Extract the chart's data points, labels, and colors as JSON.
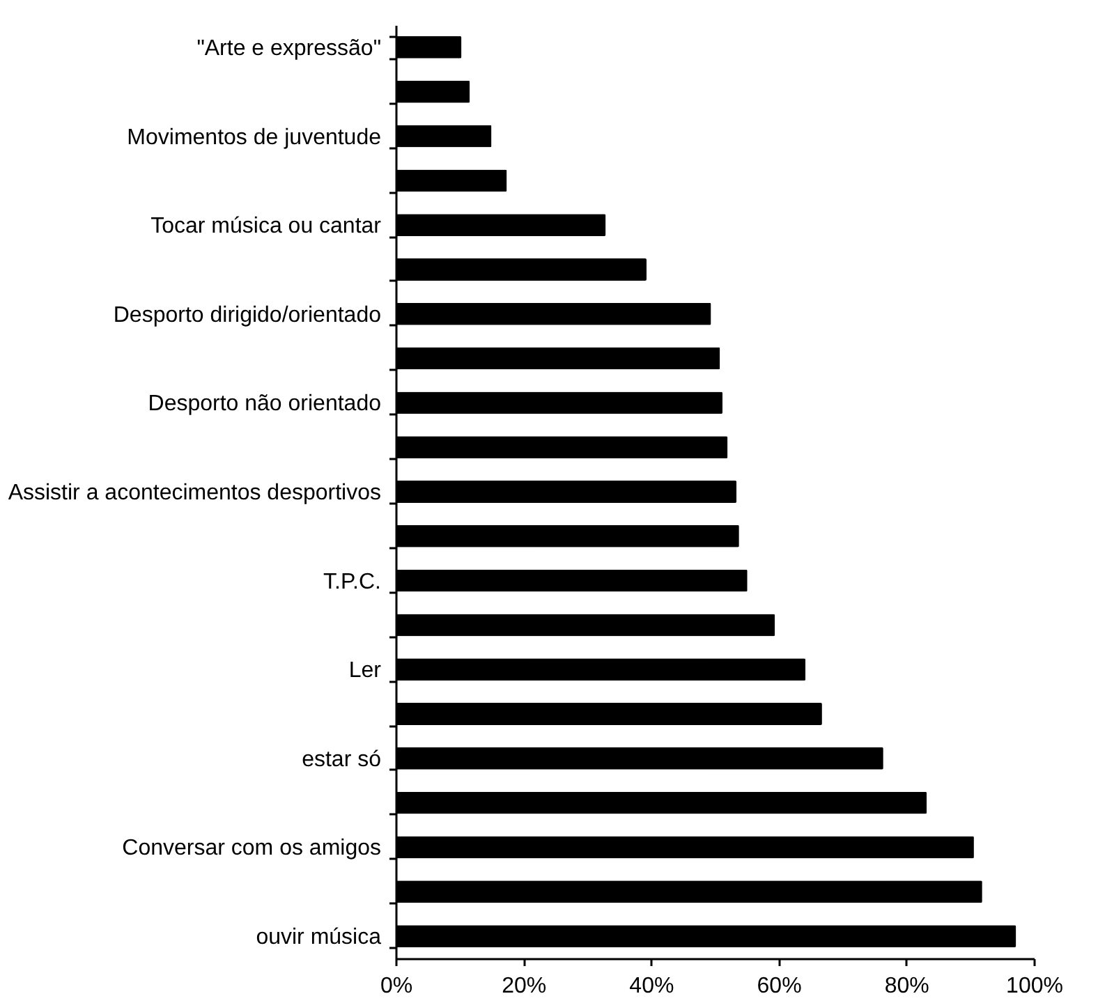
{
  "chart_data": {
    "type": "bar",
    "orientation": "horizontal",
    "color": "#000000",
    "categories": [
      "\"Arte e expressão\"",
      null,
      "Movimentos de juventude",
      null,
      "Tocar música ou cantar",
      null,
      "Desporto dirigido/orientado",
      null,
      "Desporto não orientado",
      null,
      "Assistir a acontecimentos desportivos",
      null,
      "T.P.C.",
      null,
      "Ler",
      null,
      "estar só",
      null,
      "Conversar com os amigos",
      null,
      "ouvir música"
    ],
    "values": [
      10.3,
      11.6,
      15.0,
      17.4,
      32.9,
      39.3,
      49.4,
      50.8,
      51.2,
      52.0,
      53.4,
      53.8,
      55.1,
      59.4,
      64.2,
      66.8,
      76.4,
      83.2,
      90.6,
      91.9,
      97.2
    ],
    "xlim": [
      0,
      100
    ],
    "xticks": [
      {
        "value": 0,
        "label": "0%"
      },
      {
        "value": 20,
        "label": "20%"
      },
      {
        "value": 40,
        "label": "40%"
      },
      {
        "value": 60,
        "label": "60%"
      },
      {
        "value": 80,
        "label": "80%"
      },
      {
        "value": 100,
        "label": "100%"
      }
    ],
    "grid": false
  }
}
